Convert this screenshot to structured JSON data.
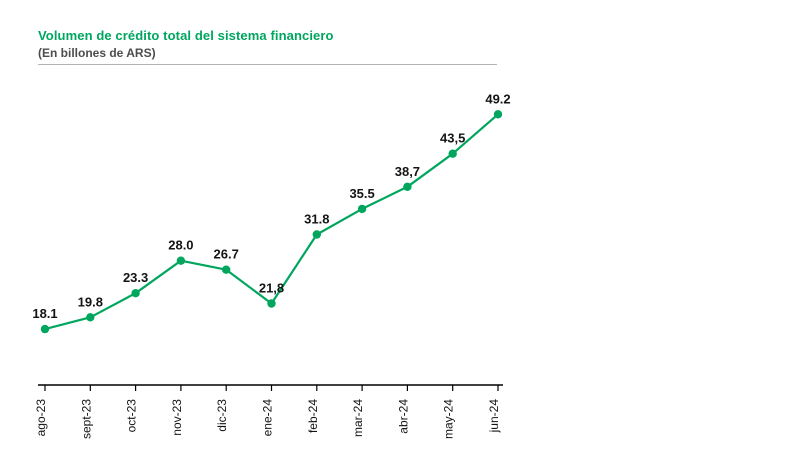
{
  "header": {
    "title": "Volumen de crédito total del sistema financiero",
    "subtitle": "(En billones de ARS)"
  },
  "chart_data": {
    "type": "line",
    "title": "Volumen de crédito total del sistema financiero",
    "subtitle": "(En billones de ARS)",
    "categories": [
      "ago-23",
      "sept-23",
      "oct-23",
      "nov-23",
      "dic-23",
      "ene-24",
      "feb-24",
      "mar-24",
      "abr-24",
      "may-24",
      "jun-24"
    ],
    "values": [
      18.1,
      19.8,
      23.3,
      28.0,
      26.7,
      21.8,
      31.8,
      35.5,
      38.7,
      43.5,
      49.2
    ],
    "value_labels": [
      "18.1",
      "19.8",
      "23.3",
      "28.0",
      "26.7",
      "21,8",
      "31.8",
      "35.5",
      "38,7",
      "43,5",
      "49.2"
    ],
    "line_color": "#00a65e",
    "marker_color": "#00a65e",
    "axis_color": "#000000",
    "xlabel": "",
    "ylabel": "",
    "ylim": [
      10,
      52
    ],
    "grid": false,
    "legend": false,
    "data_labels": true,
    "x_tick_rotation": 90
  }
}
